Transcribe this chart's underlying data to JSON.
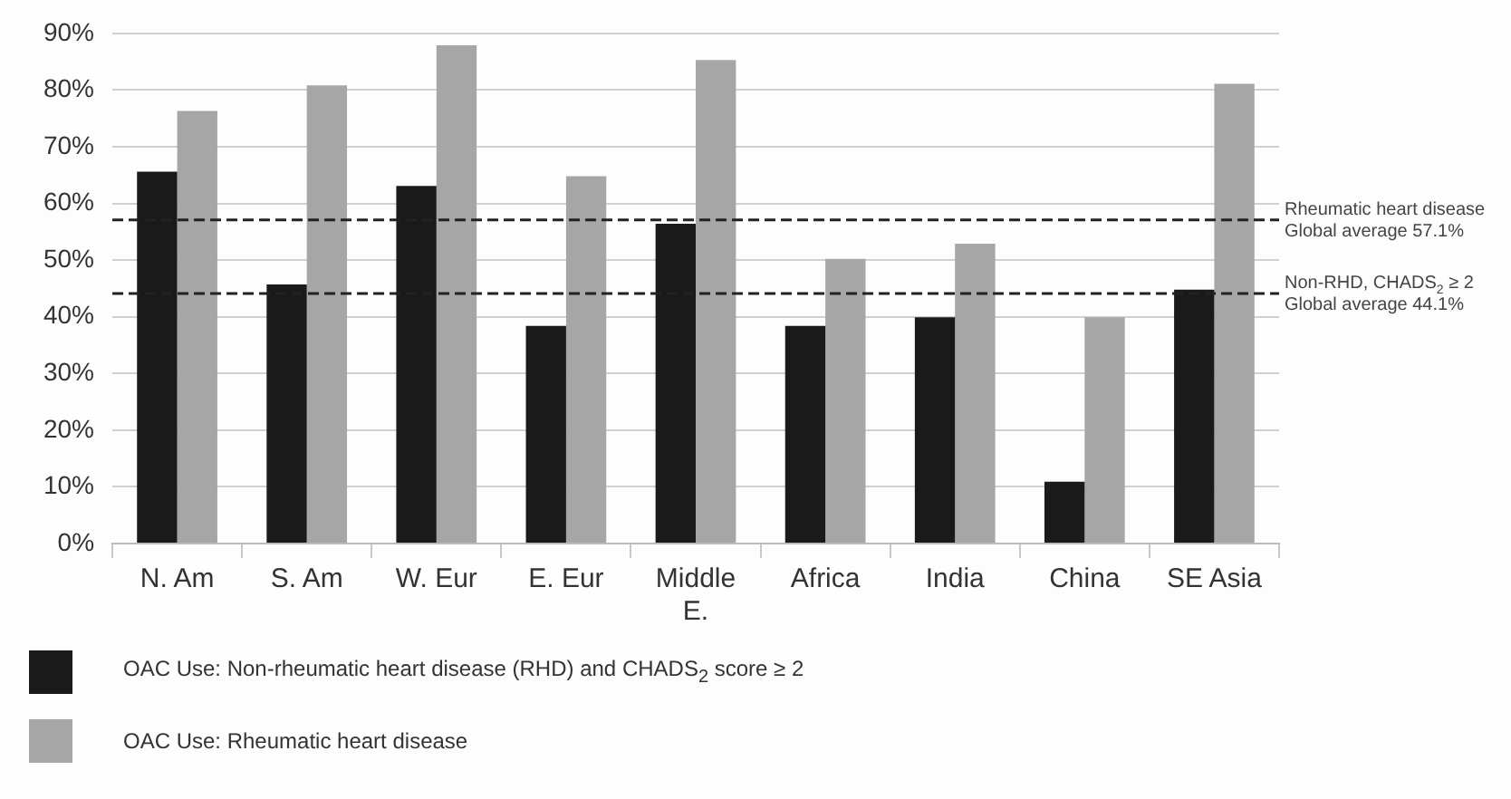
{
  "chart_data": {
    "type": "bar",
    "categories": [
      "N. Am",
      "S. Am",
      "W. Eur",
      "E. Eur",
      "Middle E.",
      "Africa",
      "India",
      "China",
      "SE Asia"
    ],
    "series": [
      {
        "name": "OAC Use: Non-rheumatic heart disease (RHD)  and CHADS$_{2}$ score ≥ 2",
        "color": "#1a1a1a",
        "values": [
          65.6,
          45.7,
          63.1,
          38.4,
          56.4,
          38.4,
          39.9,
          10.9,
          44.8
        ]
      },
      {
        "name": "OAC Use: Rheumatic heart disease",
        "color": "#a6a6a6",
        "values": [
          76.3,
          80.8,
          87.9,
          64.8,
          85.3,
          50.2,
          52.9,
          39.9,
          81.1
        ]
      }
    ],
    "ylim": [
      0,
      90
    ],
    "yticks": [
      {
        "value": 0,
        "label": "0%"
      },
      {
        "value": 10,
        "label": "10%"
      },
      {
        "value": 20,
        "label": "20%"
      },
      {
        "value": 30,
        "label": "30%"
      },
      {
        "value": 40,
        "label": "40%"
      },
      {
        "value": 50,
        "label": "50%"
      },
      {
        "value": 60,
        "label": "60%"
      },
      {
        "value": 70,
        "label": "70%"
      },
      {
        "value": 80,
        "label": "80%"
      },
      {
        "value": 90,
        "label": "90%"
      }
    ],
    "ref_lines": [
      {
        "axis": "y",
        "value": 57.1,
        "label": "Rheumatic heart disease\nGlobal average 57.1%",
        "line_style": "dashed",
        "color": "#222222"
      },
      {
        "axis": "y",
        "value": 44.1,
        "label": "Non-RHD, CHADS$_{2}$ ≥ 2\nGlobal average 44.1%",
        "line_style": "dashed",
        "color": "#222222"
      }
    ],
    "grid": "y",
    "legend": "bottom"
  }
}
